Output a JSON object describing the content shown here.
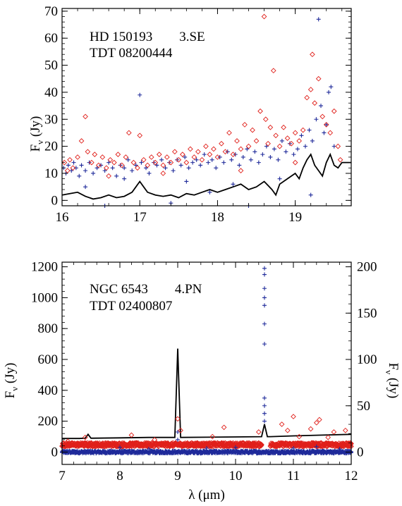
{
  "chart_data": [
    {
      "type": "scatter",
      "title_lines": [
        "HD 150193        3.SE",
        "TDT 08200444"
      ],
      "xlabel": "",
      "ylabel": "F",
      "ylabel_sub": "ν",
      "ylabel_unit": " (Jy)",
      "xlim": [
        16,
        19.72
      ],
      "ylim": [
        -2,
        71
      ],
      "x_ticks": [
        16,
        17,
        18,
        19
      ],
      "y_ticks": [
        0,
        10,
        20,
        30,
        40,
        50,
        60,
        70
      ],
      "grid": false,
      "legend": "none",
      "series": [
        {
          "marker": "cross",
          "color": "#1f2a9a",
          "points": [
            [
              16.02,
              12
            ],
            [
              16.05,
              10
            ],
            [
              16.08,
              13
            ],
            [
              16.12,
              11
            ],
            [
              16.15,
              14
            ],
            [
              16.18,
              12
            ],
            [
              16.22,
              9
            ],
            [
              16.25,
              13
            ],
            [
              16.3,
              11
            ],
            [
              16.35,
              14
            ],
            [
              16.4,
              10
            ],
            [
              16.45,
              12
            ],
            [
              16.5,
              13
            ],
            [
              16.55,
              11
            ],
            [
              16.6,
              14
            ],
            [
              16.65,
              12
            ],
            [
              16.7,
              9
            ],
            [
              16.75,
              13
            ],
            [
              16.8,
              12
            ],
            [
              16.85,
              15
            ],
            [
              16.9,
              11
            ],
            [
              16.95,
              13
            ],
            [
              17.0,
              39
            ],
            [
              17.02,
              14
            ],
            [
              17.08,
              12
            ],
            [
              17.12,
              10
            ],
            [
              17.18,
              14
            ],
            [
              17.22,
              13
            ],
            [
              17.28,
              15
            ],
            [
              17.33,
              12
            ],
            [
              17.38,
              14
            ],
            [
              17.43,
              11
            ],
            [
              17.48,
              15
            ],
            [
              17.53,
              13
            ],
            [
              17.58,
              16
            ],
            [
              17.63,
              12
            ],
            [
              17.68,
              14
            ],
            [
              17.73,
              15
            ],
            [
              17.78,
              13
            ],
            [
              17.83,
              17
            ],
            [
              17.88,
              14
            ],
            [
              17.93,
              15
            ],
            [
              17.98,
              12
            ],
            [
              18.03,
              16
            ],
            [
              18.08,
              14
            ],
            [
              18.13,
              18
            ],
            [
              18.18,
              15
            ],
            [
              18.23,
              17
            ],
            [
              18.28,
              13
            ],
            [
              18.33,
              16
            ],
            [
              18.38,
              19
            ],
            [
              18.43,
              15
            ],
            [
              18.48,
              18
            ],
            [
              18.53,
              14
            ],
            [
              18.58,
              17
            ],
            [
              18.63,
              20
            ],
            [
              18.68,
              16
            ],
            [
              18.73,
              19
            ],
            [
              18.78,
              15
            ],
            [
              18.83,
              22
            ],
            [
              18.88,
              18
            ],
            [
              18.93,
              21
            ],
            [
              18.98,
              17
            ],
            [
              19.03,
              19
            ],
            [
              19.08,
              24
            ],
            [
              19.13,
              20
            ],
            [
              19.18,
              26
            ],
            [
              19.22,
              22
            ],
            [
              19.27,
              30
            ],
            [
              19.3,
              67
            ],
            [
              19.33,
              35
            ],
            [
              19.37,
              25
            ],
            [
              19.4,
              28
            ],
            [
              19.43,
              40
            ],
            [
              19.46,
              42
            ],
            [
              19.5,
              20
            ],
            [
              16.3,
              5
            ],
            [
              16.55,
              -2
            ],
            [
              17.4,
              -1
            ],
            [
              17.9,
              3
            ],
            [
              18.4,
              -2
            ],
            [
              18.8,
              8
            ],
            [
              19.2,
              2
            ],
            [
              16.8,
              8
            ],
            [
              17.6,
              7
            ],
            [
              18.2,
              6
            ]
          ]
        },
        {
          "marker": "diamond",
          "color": "#e0201b",
          "points": [
            [
              16.03,
              14
            ],
            [
              16.07,
              11
            ],
            [
              16.1,
              15
            ],
            [
              16.14,
              12
            ],
            [
              16.2,
              16
            ],
            [
              16.25,
              22
            ],
            [
              16.3,
              31
            ],
            [
              16.33,
              18
            ],
            [
              16.38,
              14
            ],
            [
              16.42,
              17
            ],
            [
              16.47,
              13
            ],
            [
              16.52,
              16
            ],
            [
              16.57,
              12
            ],
            [
              16.62,
              15
            ],
            [
              16.67,
              14
            ],
            [
              16.72,
              17
            ],
            [
              16.77,
              13
            ],
            [
              16.82,
              16
            ],
            [
              16.86,
              25
            ],
            [
              16.92,
              14
            ],
            [
              16.97,
              12
            ],
            [
              17.0,
              24
            ],
            [
              17.05,
              15
            ],
            [
              17.1,
              13
            ],
            [
              17.15,
              16
            ],
            [
              17.2,
              14
            ],
            [
              17.25,
              17
            ],
            [
              17.3,
              13
            ],
            [
              17.35,
              16
            ],
            [
              17.4,
              14
            ],
            [
              17.45,
              18
            ],
            [
              17.5,
              15
            ],
            [
              17.55,
              17
            ],
            [
              17.6,
              14
            ],
            [
              17.65,
              19
            ],
            [
              17.7,
              16
            ],
            [
              17.75,
              18
            ],
            [
              17.8,
              15
            ],
            [
              17.85,
              20
            ],
            [
              17.9,
              17
            ],
            [
              17.95,
              19
            ],
            [
              18.0,
              16
            ],
            [
              18.05,
              21
            ],
            [
              18.1,
              18
            ],
            [
              18.15,
              25
            ],
            [
              18.2,
              17
            ],
            [
              18.25,
              22
            ],
            [
              18.3,
              19
            ],
            [
              18.35,
              28
            ],
            [
              18.4,
              20
            ],
            [
              18.45,
              26
            ],
            [
              18.5,
              22
            ],
            [
              18.55,
              33
            ],
            [
              18.6,
              68
            ],
            [
              18.62,
              30
            ],
            [
              18.65,
              21
            ],
            [
              18.68,
              27
            ],
            [
              18.72,
              48
            ],
            [
              18.75,
              24
            ],
            [
              18.8,
              20
            ],
            [
              18.85,
              27
            ],
            [
              18.9,
              23
            ],
            [
              18.95,
              21
            ],
            [
              19.0,
              25
            ],
            [
              19.05,
              22
            ],
            [
              19.1,
              26
            ],
            [
              19.15,
              38
            ],
            [
              19.2,
              41
            ],
            [
              19.22,
              54
            ],
            [
              19.25,
              36
            ],
            [
              19.3,
              45
            ],
            [
              19.35,
              31
            ],
            [
              19.4,
              28
            ],
            [
              19.45,
              25
            ],
            [
              19.5,
              33
            ],
            [
              19.55,
              20
            ],
            [
              19.58,
              15
            ],
            [
              16.6,
              9
            ],
            [
              17.3,
              10
            ],
            [
              18.3,
              11
            ],
            [
              19.0,
              14
            ]
          ]
        }
      ],
      "line": {
        "color": "#000000",
        "x": [
          16.0,
          16.1,
          16.2,
          16.3,
          16.4,
          16.5,
          16.6,
          16.7,
          16.8,
          16.9,
          16.95,
          17.0,
          17.05,
          17.1,
          17.2,
          17.3,
          17.4,
          17.5,
          17.6,
          17.7,
          17.8,
          17.9,
          18.0,
          18.1,
          18.2,
          18.3,
          18.4,
          18.5,
          18.6,
          18.7,
          18.75,
          18.8,
          18.9,
          19.0,
          19.05,
          19.1,
          19.15,
          19.2,
          19.25,
          19.3,
          19.35,
          19.4,
          19.45,
          19.5,
          19.55,
          19.6,
          19.72
        ],
        "y": [
          2,
          2.5,
          3,
          1.5,
          0.5,
          1,
          2,
          1,
          1.5,
          3,
          5,
          7,
          5,
          3,
          2,
          1.5,
          2,
          1,
          2.5,
          2,
          3,
          4,
          3,
          4,
          5,
          6,
          4,
          5,
          7,
          4,
          2,
          6,
          8,
          10,
          8,
          12,
          15,
          17,
          13,
          11,
          9,
          14,
          17,
          13,
          12,
          14,
          14
        ]
      }
    },
    {
      "type": "scatter",
      "title_lines": [
        "NGC 6543        4.PN",
        "TDT 02400807"
      ],
      "xlabel": "λ (μm)",
      "ylabel": "F",
      "ylabel_sub": "ν",
      "ylabel_unit": " (Jy)",
      "ylabel_right": "F",
      "ylabel_right_sub": "ν",
      "ylabel_right_unit": " (Jy)",
      "xlim": [
        7,
        12
      ],
      "ylim": [
        -80,
        1230
      ],
      "ylim_right": [
        -13.3,
        205
      ],
      "x_ticks": [
        7,
        8,
        9,
        10,
        11,
        12
      ],
      "y_ticks": [
        0,
        200,
        400,
        600,
        800,
        1000,
        1200
      ],
      "y_ticks_right": [
        0,
        50,
        100,
        150,
        200
      ],
      "grid": false,
      "legend": "none",
      "series": [
        {
          "marker": "cross",
          "color": "#1f2a9a",
          "band": {
            "from": 7.0,
            "to": 12.0,
            "center": 0,
            "spread": 8
          },
          "points": [
            [
              10.5,
              1190
            ],
            [
              10.5,
              1150
            ],
            [
              10.5,
              1060
            ],
            [
              10.5,
              1000
            ],
            [
              10.5,
              950
            ],
            [
              10.5,
              830
            ],
            [
              10.5,
              700
            ],
            [
              10.5,
              350
            ],
            [
              10.5,
              300
            ],
            [
              10.5,
              250
            ],
            [
              10.5,
              200
            ],
            [
              9.0,
              130
            ],
            [
              9.0,
              80
            ],
            [
              8.0,
              30
            ],
            [
              8.5,
              20
            ],
            [
              9.5,
              25
            ],
            [
              10.0,
              30
            ],
            [
              11.0,
              25
            ],
            [
              11.4,
              35
            ],
            [
              11.8,
              20
            ]
          ]
        },
        {
          "marker": "diamond",
          "color": "#e0201b",
          "band": {
            "from": 7.0,
            "to": 12.0,
            "center": 48,
            "spread": 12,
            "gap": [
              10.45,
              10.6
            ]
          },
          "points": [
            [
              7.1,
              70
            ],
            [
              7.4,
              95
            ],
            [
              8.2,
              110
            ],
            [
              8.6,
              80
            ],
            [
              9.0,
              215
            ],
            [
              9.05,
              140
            ],
            [
              9.6,
              100
            ],
            [
              9.8,
              160
            ],
            [
              10.4,
              130
            ],
            [
              10.8,
              180
            ],
            [
              10.9,
              140
            ],
            [
              11.0,
              230
            ],
            [
              11.1,
              100
            ],
            [
              11.3,
              150
            ],
            [
              11.4,
              190
            ],
            [
              11.45,
              210
            ],
            [
              11.6,
              95
            ],
            [
              11.7,
              130
            ],
            [
              11.9,
              140
            ]
          ]
        }
      ],
      "line": {
        "color": "#000000",
        "x": [
          7.0,
          7.3,
          7.4,
          7.45,
          7.5,
          8.0,
          8.5,
          8.95,
          9.0,
          9.05,
          9.5,
          10.0,
          10.45,
          10.5,
          10.55,
          10.6,
          11.0,
          11.5,
          12.0
        ],
        "y": [
          88,
          88,
          90,
          115,
          90,
          92,
          95,
          95,
          670,
          95,
          96,
          98,
          100,
          180,
          100,
          100,
          105,
          110,
          115
        ]
      }
    }
  ]
}
